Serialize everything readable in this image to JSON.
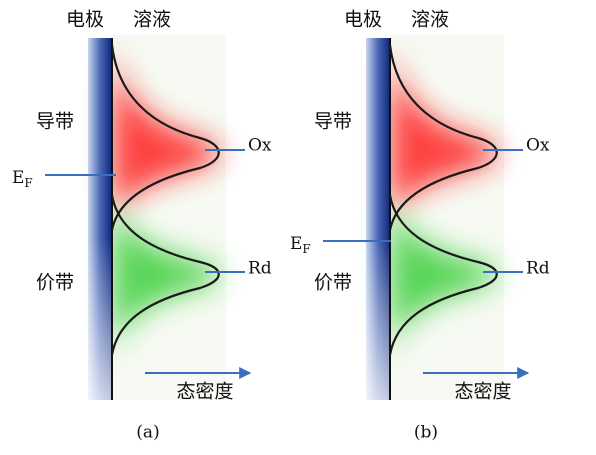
{
  "panels": [
    {
      "caption": "(a)",
      "electrode": "电极",
      "solution": "溶液",
      "conduction_band": "导带",
      "valence_band": "价带",
      "fermi_level": {
        "main": "E",
        "sub": "F"
      },
      "ox": "Ox",
      "rd": "Rd",
      "density_of_states": "态密度"
    },
    {
      "caption": "(b)",
      "electrode": "电极",
      "solution": "溶液",
      "conduction_band": "导带",
      "valence_band": "价带",
      "fermi_level": {
        "main": "E",
        "sub": "F"
      },
      "ox": "Ox",
      "rd": "Rd",
      "density_of_states": "态密度"
    }
  ]
}
